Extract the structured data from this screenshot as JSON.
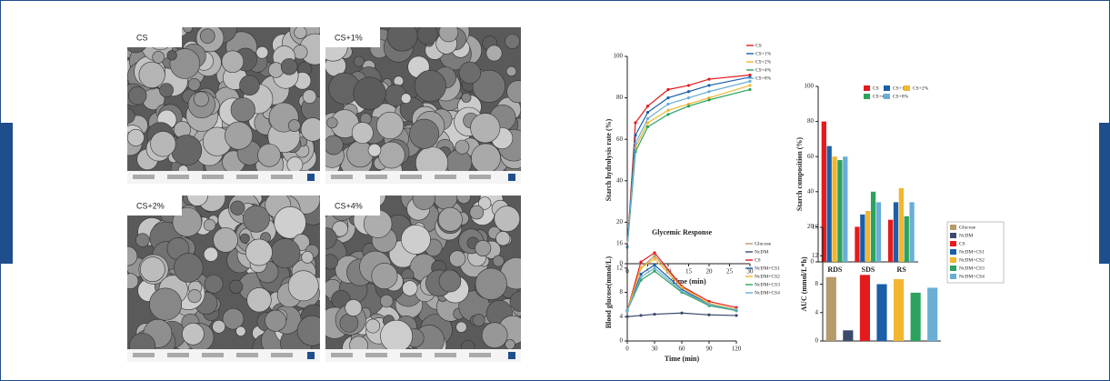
{
  "images": [
    {
      "label": "CS"
    },
    {
      "label": "CS+1%"
    },
    {
      "label": "CS+2%"
    },
    {
      "label": "CS+4%"
    }
  ],
  "chart_data": [
    {
      "type": "line",
      "xlabel": "Time (min)",
      "ylabel": "Starch hydrolysis rate (%)",
      "x": [
        0,
        2,
        5,
        10,
        15,
        20,
        30
      ],
      "xlim": [
        0,
        30
      ],
      "xticks": [
        0,
        5,
        10,
        15,
        20,
        25,
        30
      ],
      "ylim": [
        0,
        100
      ],
      "yticks": [
        0,
        20,
        40,
        60,
        80,
        100
      ],
      "legend": "upper right",
      "series": [
        {
          "name": "CS",
          "color": "#e41a1c",
          "values": [
            8,
            68,
            76,
            84,
            86,
            89,
            91
          ]
        },
        {
          "name": "CS+1%",
          "color": "#1a5fa8",
          "values": [
            8,
            62,
            73,
            80,
            83,
            86,
            90
          ]
        },
        {
          "name": "CS+2%",
          "color": "#f2b630",
          "values": [
            8,
            56,
            68,
            74,
            77,
            80,
            86
          ]
        },
        {
          "name": "CS+4%",
          "color": "#2ca25f",
          "values": [
            8,
            54,
            66,
            72,
            76,
            79,
            84
          ]
        },
        {
          "name": "CS+8%",
          "color": "#6aaed6",
          "values": [
            8,
            58,
            70,
            77,
            80,
            83,
            88
          ]
        }
      ]
    },
    {
      "type": "bar",
      "ylabel": "Starch composition (%)",
      "categories": [
        "RDS",
        "SDS",
        "RS"
      ],
      "ylim": [
        0,
        100
      ],
      "yticks": [
        0,
        20,
        40,
        60,
        80,
        100
      ],
      "legend": "upper right",
      "series": [
        {
          "name": "CS",
          "color": "#e41a1c",
          "values": [
            80,
            20,
            24
          ]
        },
        {
          "name": "CS+1%",
          "color": "#1a5fa8",
          "values": [
            66,
            27,
            34
          ]
        },
        {
          "name": "CS+2%",
          "color": "#f2b630",
          "values": [
            60,
            29,
            42
          ]
        },
        {
          "name": "CS+4%",
          "color": "#2ca25f",
          "values": [
            58,
            40,
            26
          ]
        },
        {
          "name": "CS+8%",
          "color": "#6aaed6",
          "values": [
            60,
            34,
            34
          ]
        }
      ]
    },
    {
      "type": "line",
      "title": "Glycemic Response",
      "xlabel": "Time (min)",
      "ylabel": "Blood glucose(mmol/L)",
      "x": [
        0,
        15,
        30,
        60,
        90,
        120
      ],
      "xlim": [
        0,
        120
      ],
      "xticks": [
        0,
        30,
        60,
        90,
        120
      ],
      "ylim": [
        0,
        16
      ],
      "yticks": [
        0,
        4,
        8,
        12,
        16
      ],
      "legend": "right",
      "series": [
        {
          "name": "Glucose",
          "color": "#b59b6a",
          "values": [
            5,
            12,
            14,
            9,
            6,
            5
          ]
        },
        {
          "name": "NcDM",
          "color": "#3a4a6b",
          "values": [
            4,
            4.2,
            4.4,
            4.6,
            4.3,
            4.2
          ]
        },
        {
          "name": "CS",
          "color": "#e41a1c",
          "values": [
            5,
            13,
            14.5,
            9,
            6.5,
            5.5
          ]
        },
        {
          "name": "NcDM+CS1",
          "color": "#1a5fa8",
          "values": [
            5,
            11,
            12.5,
            8.5,
            6,
            5
          ]
        },
        {
          "name": "NcDM+CS2",
          "color": "#f2b630",
          "values": [
            5,
            12,
            13.5,
            8.8,
            6.2,
            5.2
          ]
        },
        {
          "name": "NcDM+CS3",
          "color": "#2ca25f",
          "values": [
            5,
            10,
            11.5,
            8,
            5.8,
            5
          ]
        },
        {
          "name": "NcDM+CS4",
          "color": "#6aaed6",
          "values": [
            5,
            10.5,
            12,
            8.2,
            6,
            5.1
          ]
        }
      ]
    },
    {
      "type": "bar",
      "ylabel": "AUC (mmol/L*h)",
      "ylim": [
        0,
        16
      ],
      "yticks": [
        0,
        4,
        8,
        12,
        16
      ],
      "legend": "right",
      "categories": [
        "Glucose",
        "NcDM",
        "CS",
        "NcDM+CS1",
        "NcDM+CS2",
        "NcDM+CS3",
        "NcDM+CS4"
      ],
      "values": [
        9,
        1.5,
        9.3,
        8,
        8.7,
        6.8,
        7.5
      ],
      "colors": [
        "#b59b6a",
        "#3a4a6b",
        "#e41a1c",
        "#1a5fa8",
        "#f2b630",
        "#2ca25f",
        "#6aaed6"
      ]
    }
  ]
}
